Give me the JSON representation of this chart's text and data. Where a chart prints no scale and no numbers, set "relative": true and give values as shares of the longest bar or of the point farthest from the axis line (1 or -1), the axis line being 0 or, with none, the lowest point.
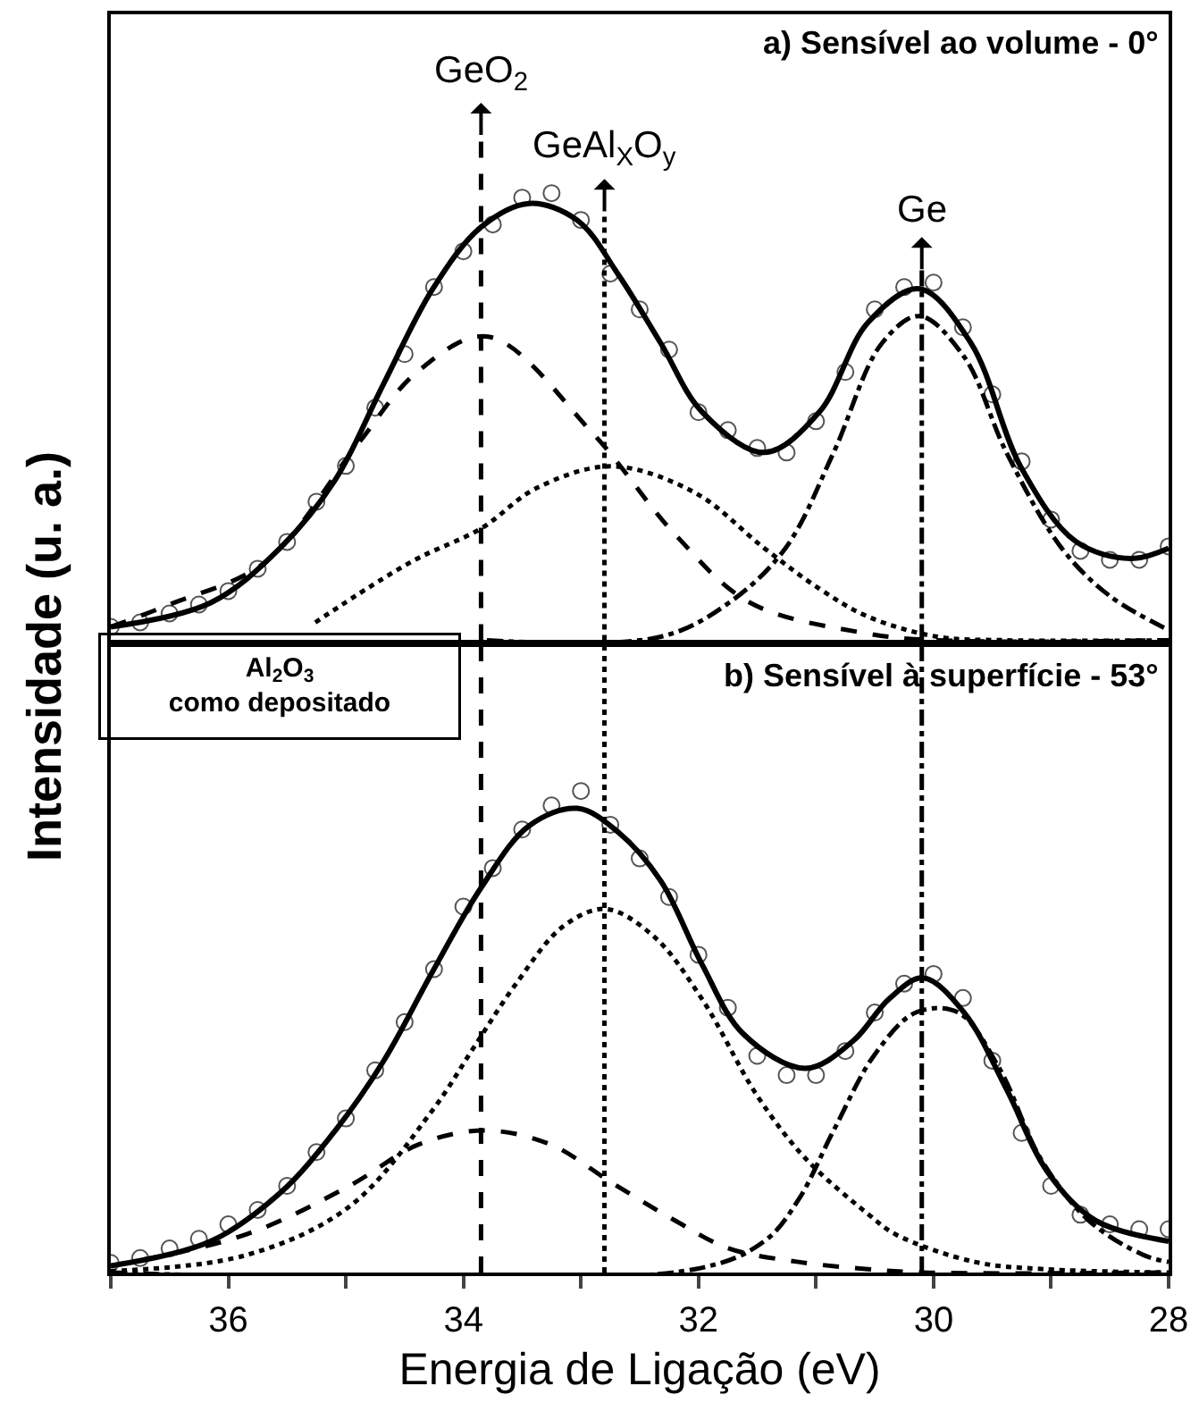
{
  "chart_data": [
    {
      "type": "line",
      "title": "a) Sensível ao volume - 0°",
      "ylabel": "Intensidade (u. a.)",
      "relative": true,
      "xlim": [
        37,
        28
      ],
      "tick_labels": false,
      "ref_lines": [
        {
          "axis": "x",
          "value": 33.85,
          "label": "GeO$_{2}$",
          "color": "#000000",
          "line_style": "dash"
        },
        {
          "axis": "x",
          "value": 32.8,
          "label": "GeAl$_{X}$O$_{y}$",
          "color": "#000000",
          "line_style": "dot"
        },
        {
          "axis": "x",
          "value": 30.1,
          "label": "Ge",
          "color": "#000000",
          "line_style": "dashdot"
        }
      ],
      "series": [
        {
          "type": "scatter",
          "marker": "circle",
          "color": "#555555",
          "x": [
            37.0,
            36.75,
            36.5,
            36.25,
            36.0,
            35.75,
            35.5,
            35.25,
            35.0,
            34.75,
            34.5,
            34.25,
            34.0,
            33.75,
            33.5,
            33.25,
            33.0,
            32.75,
            32.5,
            32.25,
            32.0,
            31.75,
            31.5,
            31.25,
            31.0,
            30.75,
            30.5,
            30.25,
            30.0,
            29.75,
            29.5,
            29.25,
            29.0,
            28.75,
            28.5,
            28.25,
            28.0
          ],
          "values": [
            0.03,
            0.04,
            0.06,
            0.08,
            0.11,
            0.16,
            0.22,
            0.31,
            0.39,
            0.52,
            0.64,
            0.79,
            0.87,
            0.93,
            0.99,
            1.0,
            0.94,
            0.82,
            0.74,
            0.65,
            0.51,
            0.47,
            0.43,
            0.42,
            0.49,
            0.6,
            0.74,
            0.79,
            0.8,
            0.7,
            0.55,
            0.4,
            0.27,
            0.2,
            0.18,
            0.18,
            0.21
          ]
        },
        {
          "marker": "none",
          "line_style": "solid",
          "color": "#000000",
          "x": [
            37.0,
            36.15,
            35.56,
            35.09,
            34.68,
            34.26,
            33.85,
            33.44,
            33.03,
            32.68,
            32.32,
            31.97,
            31.44,
            30.97,
            30.56,
            30.12,
            29.68,
            29.26,
            28.79,
            28.32,
            28.0
          ],
          "values": [
            0.03,
            0.084,
            0.206,
            0.359,
            0.573,
            0.786,
            0.924,
            0.977,
            0.939,
            0.817,
            0.664,
            0.511,
            0.42,
            0.511,
            0.71,
            0.786,
            0.664,
            0.389,
            0.221,
            0.183,
            0.206
          ]
        },
        {
          "marker": "none",
          "line_style": "dash",
          "color": "#000000",
          "x": [
            37.0,
            36.5,
            35.68,
            34.91,
            34.38,
            33.79,
            32.91,
            32.2,
            31.56,
            30.56,
            29.97,
            28.0
          ],
          "values": [
            0.03,
            0.08,
            0.176,
            0.435,
            0.603,
            0.679,
            0.466,
            0.237,
            0.084,
            0.015,
            0.0,
            0.0
          ]
        },
        {
          "marker": "none",
          "line_style": "dot",
          "color": "#000000",
          "x": [
            35.26,
            34.44,
            33.85,
            33.38,
            32.74,
            32.03,
            31.44,
            30.97,
            30.56,
            29.97,
            29.38,
            28.0
          ],
          "values": [
            0.04,
            0.176,
            0.25,
            0.34,
            0.389,
            0.33,
            0.206,
            0.115,
            0.053,
            0.008,
            0.0,
            0.0
          ]
        },
        {
          "marker": "none",
          "line_style": "dashdot",
          "color": "#000000",
          "x": [
            33.8,
            32.32,
            31.74,
            31.26,
            30.85,
            30.44,
            30.12,
            29.74,
            29.38,
            28.91,
            28.5,
            28.0
          ],
          "values": [
            0.0,
            0.008,
            0.084,
            0.206,
            0.42,
            0.664,
            0.725,
            0.634,
            0.42,
            0.206,
            0.099,
            0.023
          ]
        }
      ]
    },
    {
      "type": "line",
      "title": "b) Sensível à superfície - 53°",
      "xlabel": "Energia de Ligação (eV)",
      "relative": true,
      "xlim": [
        37,
        28
      ],
      "tick_labels": "x",
      "xticks": [
        {
          "value": 37,
          "label": null
        },
        36,
        {
          "value": 35,
          "label": null
        },
        34,
        {
          "value": 33,
          "label": null
        },
        32,
        {
          "value": 31,
          "label": null
        },
        30,
        {
          "value": 29,
          "label": null
        },
        28
      ],
      "annotations": [
        "Al$_{2}$O$_{3}$\ncomo depositado"
      ],
      "ref_lines": [
        {
          "axis": "x",
          "value": 33.85,
          "label": null,
          "color": "#000000",
          "line_style": "dash"
        },
        {
          "axis": "x",
          "value": 32.8,
          "label": null,
          "color": "#000000",
          "line_style": "dot"
        },
        {
          "axis": "x",
          "value": 30.1,
          "label": null,
          "color": "#000000",
          "line_style": "dashdot"
        }
      ],
      "series": [
        {
          "type": "scatter",
          "marker": "circle",
          "color": "#555555",
          "x": [
            37.0,
            36.75,
            36.5,
            36.25,
            36.0,
            35.75,
            35.5,
            35.25,
            35.0,
            34.75,
            34.5,
            34.25,
            34.0,
            33.75,
            33.5,
            33.25,
            33.0,
            32.75,
            32.5,
            32.25,
            32.0,
            31.75,
            31.5,
            31.25,
            31.0,
            30.75,
            30.5,
            30.25,
            30.0,
            29.75,
            29.5,
            29.25,
            29.0,
            28.75,
            28.5,
            28.25,
            28.0
          ],
          "values": [
            0.02,
            0.03,
            0.05,
            0.07,
            0.1,
            0.13,
            0.18,
            0.25,
            0.32,
            0.42,
            0.52,
            0.63,
            0.76,
            0.84,
            0.92,
            0.97,
            1.0,
            0.93,
            0.86,
            0.78,
            0.66,
            0.55,
            0.45,
            0.41,
            0.41,
            0.46,
            0.54,
            0.6,
            0.62,
            0.57,
            0.44,
            0.29,
            0.18,
            0.12,
            0.1,
            0.09,
            0.09
          ]
        },
        {
          "marker": "none",
          "line_style": "solid",
          "color": "#000000",
          "x": [
            37.0,
            36.15,
            35.56,
            35.09,
            34.68,
            34.26,
            33.85,
            33.44,
            33.03,
            32.68,
            32.32,
            31.97,
            31.62,
            31.09,
            30.68,
            30.38,
            30.09,
            29.74,
            29.38,
            29.03,
            28.62,
            28.0
          ],
          "values": [
            0.014,
            0.065,
            0.165,
            0.295,
            0.439,
            0.626,
            0.799,
            0.928,
            0.964,
            0.914,
            0.813,
            0.64,
            0.496,
            0.424,
            0.482,
            0.568,
            0.612,
            0.54,
            0.381,
            0.209,
            0.108,
            0.065
          ]
        },
        {
          "marker": "none",
          "line_style": "dash",
          "color": "#000000",
          "x": [
            37.0,
            35.85,
            34.97,
            34.38,
            33.82,
            33.26,
            32.74,
            32.2,
            31.74,
            31.15,
            30.56,
            30.09,
            28.0
          ],
          "values": [
            0.014,
            0.079,
            0.18,
            0.266,
            0.295,
            0.266,
            0.187,
            0.108,
            0.05,
            0.022,
            0.007,
            0.0,
            0.0
          ]
        },
        {
          "marker": "none",
          "line_style": "dot",
          "color": "#000000",
          "x": [
            37.0,
            35.85,
            34.97,
            34.26,
            33.91,
            33.56,
            33.15,
            32.79,
            32.38,
            31.97,
            31.5,
            31.09,
            30.56,
            30.32,
            29.65,
            29.06,
            28.0
          ],
          "values": [
            0.003,
            0.036,
            0.137,
            0.338,
            0.468,
            0.597,
            0.719,
            0.755,
            0.698,
            0.568,
            0.367,
            0.237,
            0.122,
            0.079,
            0.022,
            0.007,
            0.0
          ]
        },
        {
          "marker": "none",
          "line_style": "dashdot",
          "color": "#000000",
          "x": [
            37.0,
            32.03,
            31.44,
            31.15,
            30.85,
            30.5,
            30.15,
            29.79,
            29.44,
            29.09,
            28.68,
            28.21,
            28.0
          ],
          "values": [
            0.0,
            0.007,
            0.065,
            0.151,
            0.295,
            0.453,
            0.54,
            0.54,
            0.424,
            0.237,
            0.108,
            0.036,
            0.022
          ]
        }
      ]
    }
  ]
}
